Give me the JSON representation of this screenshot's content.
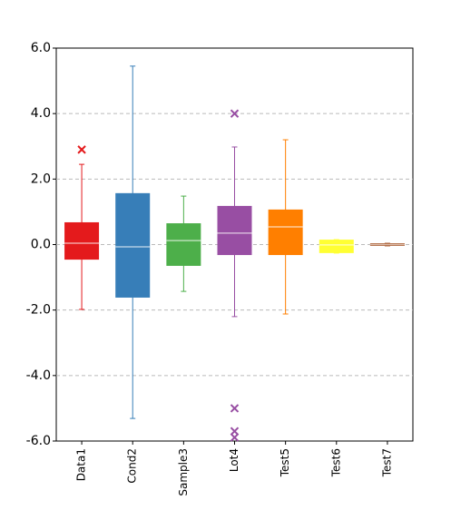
{
  "chart_data": {
    "type": "box",
    "categories": [
      "Data1",
      "Cond2",
      "Sample3",
      "Lot4",
      "Test5",
      "Test6",
      "Test7"
    ],
    "boxes": [
      {
        "color": "#e41a1c",
        "whislo": -1.98,
        "q1": -0.46,
        "med": 0.04,
        "q3": 0.68,
        "whishi": 2.45,
        "fliers": [
          2.9
        ]
      },
      {
        "color": "#377eb8",
        "whislo": -5.31,
        "q1": -1.62,
        "med": -0.07,
        "q3": 1.57,
        "whishi": 5.45,
        "fliers": []
      },
      {
        "color": "#4daf4a",
        "whislo": -1.43,
        "q1": -0.65,
        "med": 0.12,
        "q3": 0.65,
        "whishi": 1.48,
        "fliers": []
      },
      {
        "color": "#984ea3",
        "whislo": -2.2,
        "q1": -0.32,
        "med": 0.35,
        "q3": 1.18,
        "whishi": 2.98,
        "fliers": [
          4.0,
          -5.0,
          -5.7,
          -5.89
        ]
      },
      {
        "color": "#ff7f00",
        "whislo": -2.12,
        "q1": -0.32,
        "med": 0.54,
        "q3": 1.07,
        "whishi": 3.2,
        "fliers": []
      },
      {
        "color": "#ffff33",
        "whislo": -0.26,
        "q1": -0.26,
        "med": -0.01,
        "q3": 0.15,
        "whishi": 0.15,
        "fliers": []
      },
      {
        "color": "#a65628",
        "whislo": -0.04,
        "q1": -0.04,
        "med": 0.0,
        "q3": 0.04,
        "whishi": 0.04,
        "fliers": []
      }
    ],
    "ylim": [
      -6,
      6
    ],
    "yticks": [
      {
        "value": -6,
        "label": "-6.0"
      },
      {
        "value": -4,
        "label": "-4.0"
      },
      {
        "value": -2,
        "label": "-2.0"
      },
      {
        "value": 0,
        "label": "0.0"
      },
      {
        "value": 2,
        "label": "2.0"
      },
      {
        "value": 4,
        "label": "4.0"
      },
      {
        "value": 6,
        "label": "6.0"
      }
    ],
    "grid": true
  }
}
